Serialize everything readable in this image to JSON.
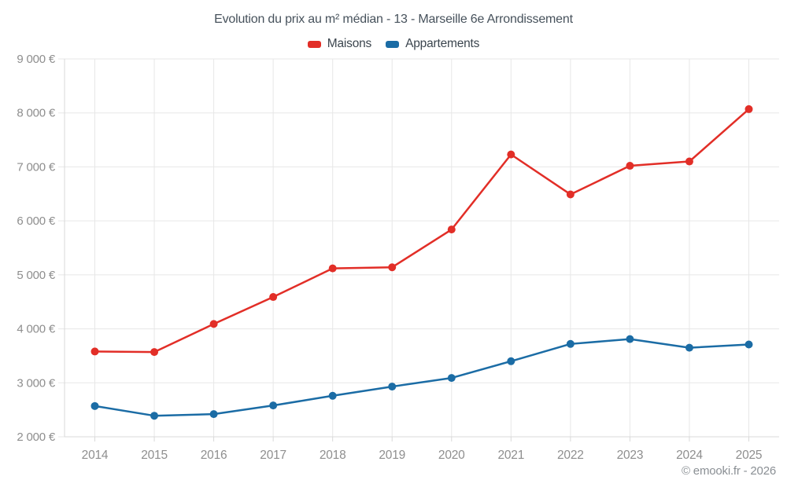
{
  "header": {
    "title": "Evolution du prix au m² médian - 13 - Marseille 6e Arrondissement"
  },
  "legend": {
    "items": [
      {
        "label": "Maisons",
        "color": "#e22e27"
      },
      {
        "label": "Appartements",
        "color": "#1b6ca5"
      }
    ]
  },
  "footer": {
    "credit": "© emooki.fr - 2026"
  },
  "colors": {
    "background": "#ffffff",
    "maisons": "#e22e27",
    "appartements": "#1b6ca5",
    "gridline": "#e7e7e7",
    "axis_line": "#d9d9d9",
    "tick_label": "#8e8e8e",
    "title_text": "#47525c",
    "legend_text": "#3b454e",
    "footer_text": "#8a8f94"
  },
  "chart_data": {
    "type": "line",
    "title": "Evolution du prix au m² médian - 13 - Marseille 6e Arrondissement",
    "xlabel": "",
    "ylabel": "",
    "categories": [
      "2014",
      "2015",
      "2016",
      "2017",
      "2018",
      "2019",
      "2020",
      "2021",
      "2022",
      "2023",
      "2024",
      "2025"
    ],
    "series": [
      {
        "name": "Maisons",
        "color": "#e22e27",
        "values": [
          3580,
          3570,
          4090,
          4590,
          5120,
          5140,
          5840,
          7230,
          6490,
          7020,
          7100,
          8070
        ]
      },
      {
        "name": "Appartements",
        "color": "#1b6ca5",
        "values": [
          2570,
          2390,
          2420,
          2580,
          2760,
          2930,
          3090,
          3400,
          3720,
          3810,
          3650,
          3710
        ]
      }
    ],
    "ylim": [
      2000,
      9000
    ],
    "y_tick_step": 1000,
    "y_ticks": [
      {
        "value": 2000,
        "label": "2 000 €"
      },
      {
        "value": 3000,
        "label": "3 000 €"
      },
      {
        "value": 4000,
        "label": "4 000 €"
      },
      {
        "value": 5000,
        "label": "5 000 €"
      },
      {
        "value": 6000,
        "label": "6 000 €"
      },
      {
        "value": 7000,
        "label": "7 000 €"
      },
      {
        "value": 8000,
        "label": "8 000 €"
      },
      {
        "value": 9000,
        "label": "9 000 €"
      }
    ],
    "grid": true,
    "legend_position": "top",
    "currency": "€"
  }
}
